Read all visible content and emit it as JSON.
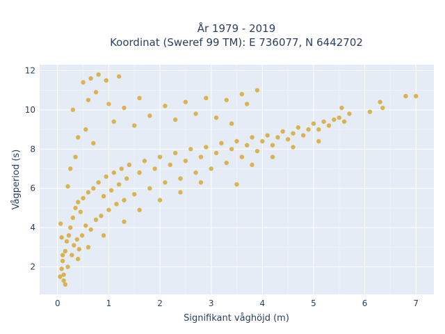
{
  "chart_data": {
    "type": "scatter",
    "title_lines": [
      "År 1979 - 2019",
      "Koordinat (Sweref 99 TM): E 736077, N 6442702"
    ],
    "xlabel": "Signifikant våghöjd (m)",
    "ylabel": "Vågperiod (s)",
    "xlim": [
      -0.35,
      7.35
    ],
    "ylim": [
      0.6,
      12.3
    ],
    "xticks": [
      0,
      1,
      2,
      3,
      4,
      5,
      6,
      7
    ],
    "yticks": [
      2,
      4,
      6,
      8,
      10,
      12
    ],
    "grid": true,
    "marker_color": "#D4A017",
    "plot_background": "#E5ECF6",
    "series": [
      {
        "points": [
          [
            0.05,
            1.5
          ],
          [
            0.08,
            1.9
          ],
          [
            0.1,
            2.3
          ],
          [
            0.12,
            1.3
          ],
          [
            0.15,
            2.8
          ],
          [
            0.18,
            3.3
          ],
          [
            0.2,
            2.0
          ],
          [
            0.22,
            3.6
          ],
          [
            0.25,
            4.0
          ],
          [
            0.28,
            2.6
          ],
          [
            0.3,
            4.5
          ],
          [
            0.32,
            3.1
          ],
          [
            0.35,
            5.0
          ],
          [
            0.38,
            3.4
          ],
          [
            0.4,
            5.3
          ],
          [
            0.42,
            2.9
          ],
          [
            0.45,
            4.8
          ],
          [
            0.48,
            3.6
          ],
          [
            0.5,
            5.5
          ],
          [
            0.55,
            4.1
          ],
          [
            0.6,
            5.8
          ],
          [
            0.65,
            3.9
          ],
          [
            0.7,
            6.0
          ],
          [
            0.75,
            4.4
          ],
          [
            0.8,
            6.3
          ],
          [
            0.85,
            4.6
          ],
          [
            0.9,
            5.6
          ],
          [
            0.95,
            6.6
          ],
          [
            1.0,
            4.9
          ],
          [
            1.05,
            5.9
          ],
          [
            1.1,
            6.8
          ],
          [
            1.15,
            5.2
          ],
          [
            1.2,
            6.2
          ],
          [
            1.25,
            7.0
          ],
          [
            1.3,
            5.4
          ],
          [
            1.35,
            6.5
          ],
          [
            1.4,
            7.2
          ],
          [
            1.5,
            5.7
          ],
          [
            1.6,
            6.8
          ],
          [
            1.7,
            7.4
          ],
          [
            1.8,
            6.0
          ],
          [
            1.9,
            7.0
          ],
          [
            2.0,
            7.6
          ],
          [
            2.1,
            6.3
          ],
          [
            2.2,
            7.2
          ],
          [
            2.3,
            7.8
          ],
          [
            2.4,
            6.5
          ],
          [
            2.5,
            7.4
          ],
          [
            2.6,
            8.0
          ],
          [
            2.7,
            6.8
          ],
          [
            2.8,
            7.6
          ],
          [
            2.9,
            8.1
          ],
          [
            3.0,
            7.0
          ],
          [
            3.1,
            7.8
          ],
          [
            3.2,
            8.3
          ],
          [
            3.3,
            7.3
          ],
          [
            3.4,
            8.0
          ],
          [
            3.5,
            8.4
          ],
          [
            3.6,
            7.6
          ],
          [
            3.7,
            8.2
          ],
          [
            3.8,
            8.6
          ],
          [
            3.9,
            7.9
          ],
          [
            4.0,
            8.4
          ],
          [
            4.1,
            8.7
          ],
          [
            4.2,
            8.2
          ],
          [
            4.3,
            8.6
          ],
          [
            4.4,
            8.9
          ],
          [
            4.5,
            8.5
          ],
          [
            4.6,
            8.8
          ],
          [
            4.7,
            9.1
          ],
          [
            4.8,
            8.7
          ],
          [
            4.9,
            9.0
          ],
          [
            5.0,
            9.3
          ],
          [
            5.1,
            9.0
          ],
          [
            5.2,
            9.4
          ],
          [
            5.3,
            9.2
          ],
          [
            5.4,
            9.5
          ],
          [
            5.5,
            9.6
          ],
          [
            5.6,
            9.4
          ],
          [
            5.7,
            9.8
          ],
          [
            5.55,
            10.1
          ],
          [
            6.1,
            9.9
          ],
          [
            6.3,
            10.4
          ],
          [
            6.35,
            10.1
          ],
          [
            6.8,
            10.7
          ],
          [
            7.0,
            10.7
          ],
          [
            0.5,
            11.4
          ],
          [
            0.65,
            11.6
          ],
          [
            0.8,
            11.8
          ],
          [
            0.95,
            11.5
          ],
          [
            1.2,
            11.7
          ],
          [
            0.3,
            10.0
          ],
          [
            0.6,
            10.5
          ],
          [
            0.75,
            10.9
          ],
          [
            1.0,
            10.3
          ],
          [
            1.3,
            10.1
          ],
          [
            1.6,
            10.6
          ],
          [
            2.1,
            10.2
          ],
          [
            2.5,
            10.4
          ],
          [
            2.9,
            10.6
          ],
          [
            3.3,
            10.5
          ],
          [
            3.6,
            10.8
          ],
          [
            3.9,
            11.0
          ],
          [
            3.7,
            10.3
          ],
          [
            0.4,
            8.6
          ],
          [
            0.55,
            9.0
          ],
          [
            0.7,
            8.3
          ],
          [
            0.35,
            7.6
          ],
          [
            0.25,
            7.0
          ],
          [
            0.2,
            6.1
          ],
          [
            1.1,
            9.4
          ],
          [
            1.5,
            9.2
          ],
          [
            1.8,
            9.7
          ],
          [
            2.3,
            9.5
          ],
          [
            2.7,
            9.8
          ],
          [
            3.1,
            9.6
          ],
          [
            3.4,
            9.3
          ],
          [
            0.15,
            1.1
          ],
          [
            0.12,
            1.6
          ],
          [
            0.1,
            2.6
          ],
          [
            0.08,
            3.5
          ],
          [
            0.06,
            4.2
          ],
          [
            3.5,
            6.2
          ],
          [
            3.8,
            7.2
          ],
          [
            4.2,
            7.6
          ],
          [
            4.6,
            8.1
          ],
          [
            5.1,
            8.4
          ],
          [
            0.6,
            3.0
          ],
          [
            0.4,
            2.4
          ],
          [
            0.9,
            3.6
          ],
          [
            1.3,
            4.3
          ],
          [
            1.6,
            4.9
          ],
          [
            2.0,
            5.4
          ],
          [
            2.4,
            5.8
          ],
          [
            2.8,
            6.3
          ]
        ]
      }
    ]
  }
}
